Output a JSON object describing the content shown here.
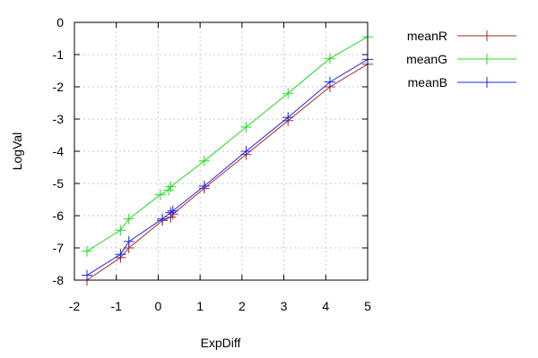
{
  "chart_data": {
    "type": "line",
    "xlabel": "ExpDiff",
    "ylabel": "LogVal",
    "xlim": [
      -2,
      5
    ],
    "ylim": [
      -8,
      0
    ],
    "xticks": [
      -2,
      -1,
      0,
      1,
      2,
      3,
      4,
      5
    ],
    "yticks": [
      0,
      -1,
      -2,
      -3,
      -4,
      -5,
      -6,
      -7,
      -8
    ],
    "x_tick_labels": [
      "-2",
      "-1",
      "0",
      "1",
      "2",
      "3",
      "4",
      "5"
    ],
    "y_tick_labels": [
      "0",
      "-1",
      "-2",
      "-3",
      "-4",
      "-5",
      "-6",
      "-7",
      "-8"
    ],
    "grid": true,
    "legend_position": "outside-top-right",
    "marker": "plus",
    "series": [
      {
        "name": "meanR",
        "color": "#a52a2a",
        "points": [
          [
            -1.7,
            -8.0
          ],
          [
            -0.9,
            -7.3
          ],
          [
            -0.7,
            -7.0
          ],
          [
            0.1,
            -6.15
          ],
          [
            0.3,
            -6.05
          ],
          [
            0.35,
            -5.95
          ],
          [
            1.1,
            -5.15
          ],
          [
            2.1,
            -4.1
          ],
          [
            3.1,
            -3.05
          ],
          [
            4.1,
            -2.0
          ],
          [
            5.0,
            -1.3
          ]
        ]
      },
      {
        "name": "meanG",
        "color": "#22dd22",
        "points": [
          [
            -1.7,
            -7.1
          ],
          [
            -0.9,
            -6.45
          ],
          [
            -0.7,
            -6.1
          ],
          [
            0.05,
            -5.35
          ],
          [
            0.25,
            -5.2
          ],
          [
            0.3,
            -5.1
          ],
          [
            1.1,
            -4.3
          ],
          [
            2.1,
            -3.25
          ],
          [
            3.1,
            -2.2
          ],
          [
            4.1,
            -1.12
          ],
          [
            5.0,
            -0.45
          ]
        ]
      },
      {
        "name": "meanB",
        "color": "#2222ee",
        "points": [
          [
            -1.7,
            -7.85
          ],
          [
            -0.9,
            -7.2
          ],
          [
            -0.7,
            -6.8
          ],
          [
            0.1,
            -6.1
          ],
          [
            0.3,
            -5.9
          ],
          [
            0.35,
            -5.85
          ],
          [
            1.1,
            -5.08
          ],
          [
            2.1,
            -4.0
          ],
          [
            3.1,
            -2.95
          ],
          [
            4.1,
            -1.85
          ],
          [
            5.0,
            -1.15
          ]
        ]
      }
    ]
  }
}
